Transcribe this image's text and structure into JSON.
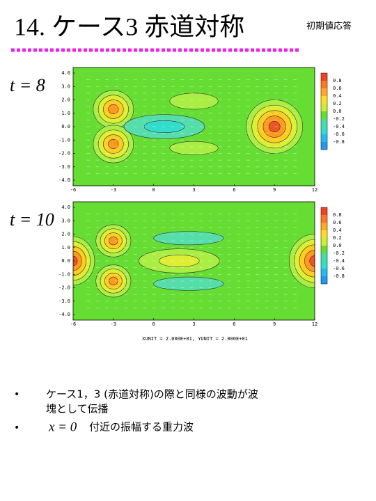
{
  "header": {
    "title": "14. ケース3 赤道対称",
    "subtitle": "初期値応答"
  },
  "panels": [
    {
      "label": "t = 8"
    },
    {
      "label": "t = 10"
    }
  ],
  "axes": {
    "yticks": [
      "4.0",
      "3.0",
      "2.0",
      "1.0",
      "0.0",
      "-1.0",
      "-2.0",
      "-3.0",
      "-4.0"
    ],
    "xticks": [
      "-6",
      "-3",
      "0",
      "3",
      "6",
      "9",
      "12"
    ]
  },
  "colorbar": {
    "labels": [
      "0.8",
      "0.6",
      "0.4",
      "0.2",
      "0.0",
      "-0.2",
      "-0.4",
      "-0.6",
      "-0.8"
    ]
  },
  "caption": "XUNIT = 2.000E+01, YUNIT = 2.000E+01",
  "bullets": [
    {
      "text": "ケース1，3 (赤道対称)の際と同様の波動が波塊として伝播"
    },
    {
      "math": "x = 0",
      "text": "付近の振幅する重力波"
    }
  ]
}
